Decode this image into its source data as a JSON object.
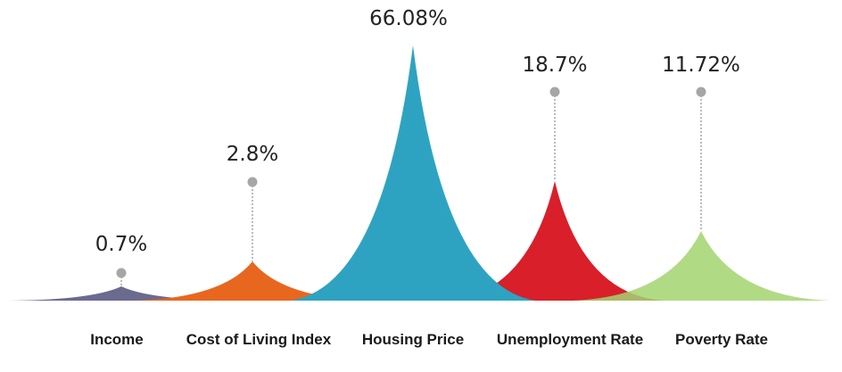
{
  "chart_data": {
    "type": "area",
    "categories": [
      "Income",
      "Cost of Living Index",
      "Housing Price",
      "Unemployment Rate",
      "Poverty Rate"
    ],
    "values": [
      0.7,
      2.8,
      66.08,
      18.7,
      11.72
    ],
    "data_labels": [
      "0.7%",
      "2.8%",
      "66.08%",
      "18.7%",
      "11.72%"
    ],
    "colors": [
      "#6b6a8f",
      "#e8671f",
      "#2ea3c1",
      "#d81f2a",
      "#a3d470"
    ],
    "overlap_colors": [
      "#6b6a8f",
      "#e8671f",
      "#2ea3c1",
      "#d81f2a",
      "#8aa84a"
    ],
    "pointer_color": "#a6a6a6",
    "title": "",
    "xlabel": "",
    "ylabel": "",
    "grid": false,
    "legend": "none"
  }
}
